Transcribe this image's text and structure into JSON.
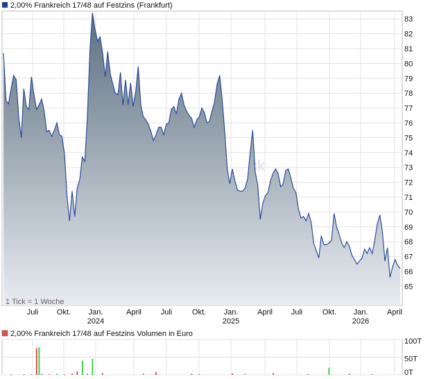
{
  "chart_data": [
    {
      "type": "area",
      "title": "2,00% Frankreich 17/48 auf Festzins (Frankfurt)",
      "note": "1 Tick = 1 Woche",
      "watermark": "ck",
      "colors": {
        "legend": "#1f3f8f",
        "line": "#2b4c9a",
        "fill_top": "#5c6f80",
        "fill_bottom": "#e8ecf0"
      },
      "y_ticks": [
        65,
        66,
        67,
        68,
        69,
        70,
        71,
        72,
        73,
        74,
        75,
        76,
        77,
        78,
        79,
        80,
        81,
        82,
        83
      ],
      "ylim": [
        64.2,
        84
      ],
      "x_ticks": [
        {
          "label": "Juli",
          "year": ""
        },
        {
          "label": "Okt.",
          "year": ""
        },
        {
          "label": "Jan.",
          "year": "2024"
        },
        {
          "label": "April",
          "year": ""
        },
        {
          "label": "Juli",
          "year": ""
        },
        {
          "label": "Okt.",
          "year": ""
        },
        {
          "label": "Jan.",
          "year": "2025"
        },
        {
          "label": "April",
          "year": ""
        },
        {
          "label": "Juli",
          "year": ""
        },
        {
          "label": "Okt.",
          "year": ""
        },
        {
          "label": "Jan.",
          "year": "2026"
        },
        {
          "label": "April",
          "year": ""
        }
      ],
      "grid": true,
      "values": [
        80.7,
        77.5,
        77.3,
        78.3,
        79.2,
        78.9,
        76.4,
        75.0,
        78.3,
        77.1,
        76.9,
        79.1,
        77.9,
        76.9,
        77.2,
        77.6,
        76.8,
        75.4,
        75.5,
        75.1,
        75.5,
        76.0,
        75.2,
        75.1,
        73.9,
        71.0,
        69.4,
        71.4,
        69.7,
        71.6,
        72.2,
        73.7,
        73.4,
        76.4,
        80.9,
        83.4,
        82.3,
        81.5,
        81.8,
        80.7,
        79.1,
        80.8,
        79.3,
        78.6,
        78.0,
        77.9,
        79.4,
        77.2,
        78.9,
        77.2,
        78.7,
        77.1,
        78.1,
        79.8,
        77.2,
        76.4,
        76.2,
        75.9,
        75.4,
        74.8,
        75.2,
        75.7,
        75.7,
        75.2,
        75.9,
        76.0,
        76.9,
        77.1,
        76.6,
        77.6,
        78.0,
        77.2,
        76.8,
        76.5,
        76.3,
        75.7,
        76.2,
        76.4,
        77.0,
        76.7,
        76.0,
        76.1,
        76.8,
        77.4,
        78.6,
        79.2,
        77.6,
        75.4,
        72.9,
        71.9,
        72.9,
        72.1,
        71.5,
        71.4,
        71.4,
        71.6,
        72.2,
        74.0,
        75.5,
        72.7,
        71.8,
        69.5,
        70.6,
        71.1,
        71.3,
        72.1,
        72.6,
        72.9,
        72.6,
        71.7,
        71.9,
        72.8,
        72.9,
        72.3,
        71.6,
        71.3,
        70.2,
        69.6,
        69.7,
        69.4,
        69.9,
        69.3,
        67.9,
        67.4,
        66.9,
        68.4,
        67.8,
        67.8,
        67.9,
        68.1,
        69.9,
        69.0,
        68.5,
        67.9,
        67.6,
        68.0,
        67.7,
        67.1,
        66.8,
        66.5,
        66.7,
        66.9,
        67.5,
        67.2,
        67.6,
        67.2,
        68.1,
        69.2,
        69.8,
        68.7,
        66.7,
        67.6,
        65.6,
        66.3,
        66.8,
        66.4,
        66.2
      ]
    },
    {
      "type": "bar",
      "title": "2,00% Frankreich 17/48 auf Festzins Volumen in Euro",
      "colors": {
        "legend": "#d9534f",
        "up": "#2ecc40",
        "down": "#e33b3b"
      },
      "y_ticks": [
        "0T",
        "50T",
        "100T"
      ],
      "ylim": [
        0,
        100
      ],
      "grid": true,
      "bars": [
        {
          "w": 3,
          "v": 1,
          "c": "down"
        },
        {
          "w": 8,
          "v": 1,
          "c": "down"
        },
        {
          "w": 11,
          "v": 2,
          "c": "down"
        },
        {
          "w": 13,
          "v": 75,
          "c": "down"
        },
        {
          "w": 14,
          "v": 78,
          "c": "up"
        },
        {
          "w": 15,
          "v": 3,
          "c": "down"
        },
        {
          "w": 18,
          "v": 2,
          "c": "down"
        },
        {
          "w": 21,
          "v": 3,
          "c": "up"
        },
        {
          "w": 24,
          "v": 1,
          "c": "down"
        },
        {
          "w": 27,
          "v": 4,
          "c": "down"
        },
        {
          "w": 29,
          "v": 10,
          "c": "down"
        },
        {
          "w": 31,
          "v": 40,
          "c": "up"
        },
        {
          "w": 33,
          "v": 3,
          "c": "down"
        },
        {
          "w": 35,
          "v": 45,
          "c": "up"
        },
        {
          "w": 39,
          "v": 5,
          "c": "down"
        },
        {
          "w": 55,
          "v": 3,
          "c": "down"
        },
        {
          "w": 60,
          "v": 8,
          "c": "down"
        },
        {
          "w": 74,
          "v": 3,
          "c": "down"
        },
        {
          "w": 77,
          "v": 2,
          "c": "down"
        },
        {
          "w": 90,
          "v": 4,
          "c": "down"
        },
        {
          "w": 95,
          "v": 3,
          "c": "up"
        },
        {
          "w": 106,
          "v": 5,
          "c": "down"
        },
        {
          "w": 120,
          "v": 2,
          "c": "down"
        },
        {
          "w": 128,
          "v": 20,
          "c": "up"
        },
        {
          "w": 136,
          "v": 3,
          "c": "down"
        },
        {
          "w": 145,
          "v": 2,
          "c": "down"
        }
      ]
    }
  ]
}
